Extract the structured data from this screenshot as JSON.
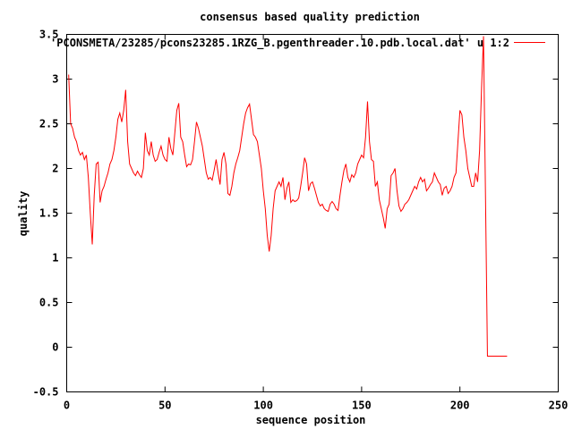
{
  "chart_data": {
    "type": "line",
    "title": "consensus based quality prediction",
    "xlabel": "sequence position",
    "ylabel": "quality",
    "xlim": [
      0,
      250
    ],
    "ylim": [
      -0.5,
      3.5
    ],
    "x_ticks": [
      0,
      50,
      100,
      150,
      200,
      250
    ],
    "y_ticks": [
      -0.5,
      0,
      0.5,
      1,
      1.5,
      2,
      2.5,
      3,
      3.5
    ],
    "x_tick_labels": [
      "0",
      "50",
      "100",
      "150",
      "200",
      "250"
    ],
    "y_tick_labels": [
      "-0.5",
      "0",
      "0.5",
      "1",
      "1.5",
      "2",
      "2.5",
      "3",
      "3.5"
    ],
    "grid": false,
    "legend_position": "top-right",
    "series": [
      {
        "name": "'PCONSMETA/23285/pcons23285.1RZG_B.pgenthreader.10.pdb.local.dat' u 1:2",
        "color": "#ff0000",
        "x": [
          1,
          2,
          3,
          4,
          5,
          6,
          7,
          8,
          9,
          10,
          11,
          12,
          13,
          14,
          15,
          16,
          17,
          18,
          19,
          20,
          21,
          22,
          23,
          24,
          25,
          26,
          27,
          28,
          29,
          30,
          31,
          32,
          33,
          34,
          35,
          36,
          37,
          38,
          39,
          40,
          41,
          42,
          43,
          44,
          45,
          46,
          47,
          48,
          49,
          50,
          51,
          52,
          53,
          54,
          55,
          56,
          57,
          58,
          59,
          60,
          61,
          62,
          63,
          64,
          65,
          66,
          67,
          68,
          69,
          70,
          71,
          72,
          73,
          74,
          75,
          76,
          77,
          78,
          79,
          80,
          81,
          82,
          83,
          84,
          85,
          86,
          87,
          88,
          89,
          90,
          91,
          92,
          93,
          94,
          95,
          96,
          97,
          98,
          99,
          100,
          101,
          102,
          103,
          104,
          105,
          106,
          107,
          108,
          109,
          110,
          111,
          112,
          113,
          114,
          115,
          116,
          117,
          118,
          119,
          120,
          121,
          122,
          123,
          124,
          125,
          126,
          127,
          128,
          129,
          130,
          131,
          132,
          133,
          134,
          135,
          136,
          137,
          138,
          139,
          140,
          141,
          142,
          143,
          144,
          145,
          146,
          147,
          148,
          149,
          150,
          151,
          152,
          153,
          154,
          155,
          156,
          157,
          158,
          159,
          160,
          161,
          162,
          163,
          164,
          165,
          166,
          167,
          168,
          169,
          170,
          171,
          172,
          173,
          174,
          175,
          176,
          177,
          178,
          179,
          180,
          181,
          182,
          183,
          184,
          185,
          186,
          187,
          188,
          189,
          190,
          191,
          192,
          193,
          194,
          195,
          196,
          197,
          198,
          199,
          200,
          201,
          202,
          203,
          204,
          205,
          206,
          207,
          208,
          209,
          210,
          211,
          212,
          213,
          214,
          215,
          216,
          217,
          218,
          219,
          220,
          221,
          222,
          223,
          224
        ],
        "y": [
          3.05,
          2.5,
          2.45,
          2.35,
          2.3,
          2.2,
          2.15,
          2.18,
          2.1,
          2.15,
          1.9,
          1.5,
          1.15,
          1.7,
          2.05,
          2.07,
          1.62,
          1.75,
          1.8,
          1.88,
          1.95,
          2.05,
          2.1,
          2.2,
          2.35,
          2.55,
          2.62,
          2.52,
          2.65,
          2.88,
          2.3,
          2.05,
          2.0,
          1.95,
          1.92,
          1.97,
          1.93,
          1.9,
          2.0,
          2.4,
          2.2,
          2.15,
          2.3,
          2.15,
          2.08,
          2.1,
          2.18,
          2.25,
          2.15,
          2.1,
          2.08,
          2.35,
          2.22,
          2.15,
          2.4,
          2.65,
          2.73,
          2.35,
          2.3,
          2.15,
          2.02,
          2.05,
          2.04,
          2.1,
          2.3,
          2.52,
          2.45,
          2.35,
          2.25,
          2.1,
          1.95,
          1.88,
          1.9,
          1.87,
          1.98,
          2.1,
          1.95,
          1.82,
          2.1,
          2.18,
          2.05,
          1.72,
          1.7,
          1.8,
          1.95,
          2.05,
          2.12,
          2.2,
          2.35,
          2.5,
          2.62,
          2.68,
          2.72,
          2.55,
          2.38,
          2.35,
          2.3,
          2.15,
          2.0,
          1.75,
          1.55,
          1.25,
          1.07,
          1.25,
          1.55,
          1.75,
          1.8,
          1.85,
          1.8,
          1.9,
          1.65,
          1.78,
          1.85,
          1.62,
          1.65,
          1.63,
          1.64,
          1.67,
          1.8,
          1.95,
          2.12,
          2.05,
          1.75,
          1.83,
          1.85,
          1.78,
          1.7,
          1.62,
          1.58,
          1.6,
          1.55,
          1.53,
          1.52,
          1.6,
          1.63,
          1.6,
          1.55,
          1.53,
          1.7,
          1.85,
          1.98,
          2.05,
          1.9,
          1.85,
          1.93,
          1.9,
          1.95,
          2.05,
          2.1,
          2.15,
          2.12,
          2.35,
          2.75,
          2.3,
          2.1,
          2.08,
          1.8,
          1.85,
          1.65,
          1.55,
          1.45,
          1.33,
          1.55,
          1.6,
          1.92,
          1.95,
          2.0,
          1.75,
          1.58,
          1.52,
          1.55,
          1.6,
          1.62,
          1.65,
          1.7,
          1.75,
          1.8,
          1.77,
          1.85,
          1.9,
          1.85,
          1.88,
          1.75,
          1.78,
          1.82,
          1.85,
          1.95,
          1.9,
          1.85,
          1.82,
          1.7,
          1.78,
          1.8,
          1.72,
          1.75,
          1.8,
          1.9,
          1.95,
          2.3,
          2.65,
          2.6,
          2.35,
          2.2,
          2.0,
          1.9,
          1.8,
          1.8,
          1.95,
          1.85,
          2.2,
          2.9,
          3.48,
          1.7,
          -0.1,
          -0.1,
          -0.1,
          -0.1,
          -0.1,
          -0.1,
          -0.1,
          -0.1,
          -0.1,
          -0.1,
          -0.1
        ]
      }
    ]
  }
}
